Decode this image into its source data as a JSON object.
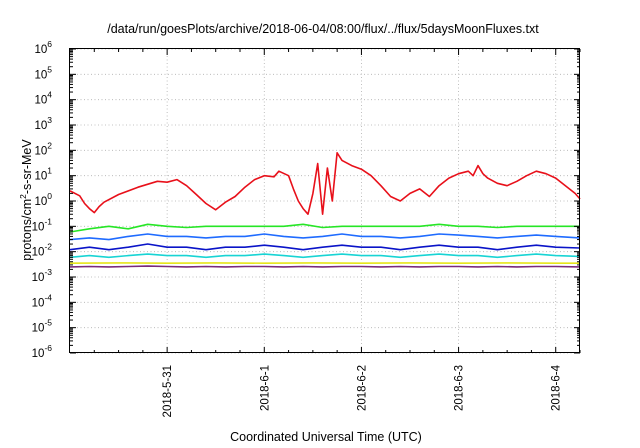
{
  "chart_data": {
    "type": "line",
    "title": "/data/run/goesPlots/archive/2018-06-04/08:00/flux/../flux/5daysMoonFluxes.txt",
    "xlabel": "Coordinated Universal Time (UTC)",
    "ylabel": "protons/cm²-s-sr-MeV",
    "ylabel_parts": {
      "pre": "protons/cm",
      "sup": "2",
      "post": "-s-sr-MeV"
    },
    "yscale": "log",
    "ylim": [
      1e-06,
      1000000.0
    ],
    "xlim": [
      0.0,
      5.25
    ],
    "x_origin_note": "x in days from 2018-05-30 00:00 UTC",
    "x_ticks": [
      {
        "x": 1.0,
        "label": "2018-5-31"
      },
      {
        "x": 2.0,
        "label": "2018-6-1"
      },
      {
        "x": 3.0,
        "label": "2018-6-2"
      },
      {
        "x": 4.0,
        "label": "2018-6-3"
      },
      {
        "x": 5.0,
        "label": "2018-6-4"
      }
    ],
    "y_ticks": [
      {
        "exp": -6,
        "label": "10",
        "sup": "-6"
      },
      {
        "exp": -5,
        "label": "10",
        "sup": "-5"
      },
      {
        "exp": -4,
        "label": "10",
        "sup": "-4"
      },
      {
        "exp": -3,
        "label": "10",
        "sup": "-3"
      },
      {
        "exp": -2,
        "label": "10",
        "sup": "-2"
      },
      {
        "exp": -1,
        "label": "10",
        "sup": "-1"
      },
      {
        "exp": 0,
        "label": "10",
        "sup": "0"
      },
      {
        "exp": 1,
        "label": "10",
        "sup": "1"
      },
      {
        "exp": 2,
        "label": "10",
        "sup": "2"
      },
      {
        "exp": 3,
        "label": "10",
        "sup": "3"
      },
      {
        "exp": 4,
        "label": "10",
        "sup": "4"
      },
      {
        "exp": 5,
        "label": "10",
        "sup": "5"
      },
      {
        "exp": 6,
        "label": "10",
        "sup": "6"
      }
    ],
    "grid": true,
    "legend": "none",
    "series": [
      {
        "color": "#e8101a",
        "points": [
          [
            0.0,
            2.5
          ],
          [
            0.1,
            1.6
          ],
          [
            0.15,
            0.8
          ],
          [
            0.2,
            0.5
          ],
          [
            0.25,
            0.35
          ],
          [
            0.3,
            0.6
          ],
          [
            0.35,
            0.9
          ],
          [
            0.5,
            1.8
          ],
          [
            0.7,
            3.5
          ],
          [
            0.9,
            6.0
          ],
          [
            1.0,
            5.5
          ],
          [
            1.1,
            7.0
          ],
          [
            1.2,
            4.0
          ],
          [
            1.3,
            1.8
          ],
          [
            1.4,
            0.8
          ],
          [
            1.5,
            0.45
          ],
          [
            1.6,
            0.9
          ],
          [
            1.7,
            1.5
          ],
          [
            1.8,
            3.5
          ],
          [
            1.9,
            7.0
          ],
          [
            2.0,
            10.0
          ],
          [
            2.1,
            9.0
          ],
          [
            2.15,
            15.0
          ],
          [
            2.25,
            10.0
          ],
          [
            2.3,
            3.0
          ],
          [
            2.35,
            1.0
          ],
          [
            2.4,
            0.5
          ],
          [
            2.45,
            0.3
          ],
          [
            2.5,
            2.0
          ],
          [
            2.55,
            30.0
          ],
          [
            2.6,
            0.3
          ],
          [
            2.65,
            20.0
          ],
          [
            2.7,
            1.0
          ],
          [
            2.75,
            80.0
          ],
          [
            2.8,
            40.0
          ],
          [
            2.9,
            25.0
          ],
          [
            3.0,
            18.0
          ],
          [
            3.1,
            10.0
          ],
          [
            3.2,
            4.0
          ],
          [
            3.3,
            1.5
          ],
          [
            3.4,
            1.0
          ],
          [
            3.5,
            2.0
          ],
          [
            3.6,
            3.0
          ],
          [
            3.7,
            1.5
          ],
          [
            3.8,
            4.0
          ],
          [
            3.9,
            8.0
          ],
          [
            4.0,
            12.0
          ],
          [
            4.1,
            15.0
          ],
          [
            4.15,
            10.0
          ],
          [
            4.2,
            25.0
          ],
          [
            4.25,
            12.0
          ],
          [
            4.3,
            8.0
          ],
          [
            4.4,
            5.0
          ],
          [
            4.5,
            4.0
          ],
          [
            4.6,
            6.0
          ],
          [
            4.7,
            10.0
          ],
          [
            4.8,
            15.0
          ],
          [
            4.9,
            12.0
          ],
          [
            5.0,
            8.0
          ],
          [
            5.1,
            4.0
          ],
          [
            5.2,
            2.0
          ],
          [
            5.25,
            1.2
          ]
        ]
      },
      {
        "color": "#26e626",
        "points": [
          [
            0.0,
            0.06
          ],
          [
            0.2,
            0.08
          ],
          [
            0.4,
            0.1
          ],
          [
            0.6,
            0.08
          ],
          [
            0.8,
            0.12
          ],
          [
            1.0,
            0.1
          ],
          [
            1.2,
            0.09
          ],
          [
            1.4,
            0.1
          ],
          [
            1.6,
            0.1
          ],
          [
            1.8,
            0.1
          ],
          [
            2.0,
            0.1
          ],
          [
            2.2,
            0.1
          ],
          [
            2.4,
            0.12
          ],
          [
            2.6,
            0.09
          ],
          [
            2.8,
            0.1
          ],
          [
            3.0,
            0.1
          ],
          [
            3.2,
            0.1
          ],
          [
            3.4,
            0.1
          ],
          [
            3.6,
            0.1
          ],
          [
            3.8,
            0.12
          ],
          [
            4.0,
            0.1
          ],
          [
            4.2,
            0.1
          ],
          [
            4.4,
            0.09
          ],
          [
            4.6,
            0.1
          ],
          [
            4.8,
            0.1
          ],
          [
            5.0,
            0.1
          ],
          [
            5.25,
            0.1
          ]
        ]
      },
      {
        "color": "#1f6bff",
        "points": [
          [
            0.0,
            0.03
          ],
          [
            0.2,
            0.035
          ],
          [
            0.4,
            0.03
          ],
          [
            0.6,
            0.04
          ],
          [
            0.8,
            0.05
          ],
          [
            1.0,
            0.04
          ],
          [
            1.2,
            0.04
          ],
          [
            1.4,
            0.035
          ],
          [
            1.6,
            0.04
          ],
          [
            1.8,
            0.04
          ],
          [
            2.0,
            0.05
          ],
          [
            2.2,
            0.04
          ],
          [
            2.4,
            0.035
          ],
          [
            2.6,
            0.04
          ],
          [
            2.8,
            0.05
          ],
          [
            3.0,
            0.04
          ],
          [
            3.2,
            0.04
          ],
          [
            3.4,
            0.035
          ],
          [
            3.6,
            0.04
          ],
          [
            3.8,
            0.05
          ],
          [
            4.0,
            0.045
          ],
          [
            4.2,
            0.04
          ],
          [
            4.4,
            0.035
          ],
          [
            4.6,
            0.04
          ],
          [
            4.8,
            0.045
          ],
          [
            5.0,
            0.04
          ],
          [
            5.25,
            0.035
          ]
        ]
      },
      {
        "color": "#0a14c8",
        "points": [
          [
            0.0,
            0.012
          ],
          [
            0.2,
            0.015
          ],
          [
            0.4,
            0.012
          ],
          [
            0.6,
            0.015
          ],
          [
            0.8,
            0.02
          ],
          [
            1.0,
            0.015
          ],
          [
            1.2,
            0.015
          ],
          [
            1.4,
            0.012
          ],
          [
            1.6,
            0.015
          ],
          [
            1.8,
            0.015
          ],
          [
            2.0,
            0.018
          ],
          [
            2.2,
            0.015
          ],
          [
            2.4,
            0.012
          ],
          [
            2.6,
            0.015
          ],
          [
            2.8,
            0.018
          ],
          [
            3.0,
            0.015
          ],
          [
            3.2,
            0.015
          ],
          [
            3.4,
            0.012
          ],
          [
            3.6,
            0.015
          ],
          [
            3.8,
            0.018
          ],
          [
            4.0,
            0.015
          ],
          [
            4.2,
            0.015
          ],
          [
            4.4,
            0.012
          ],
          [
            4.6,
            0.015
          ],
          [
            4.8,
            0.018
          ],
          [
            5.0,
            0.015
          ],
          [
            5.25,
            0.014
          ]
        ]
      },
      {
        "color": "#18d4d4",
        "points": [
          [
            0.0,
            0.006
          ],
          [
            0.2,
            0.007
          ],
          [
            0.4,
            0.006
          ],
          [
            0.6,
            0.007
          ],
          [
            0.8,
            0.008
          ],
          [
            1.0,
            0.007
          ],
          [
            1.2,
            0.007
          ],
          [
            1.4,
            0.006
          ],
          [
            1.6,
            0.007
          ],
          [
            1.8,
            0.007
          ],
          [
            2.0,
            0.008
          ],
          [
            2.2,
            0.007
          ],
          [
            2.4,
            0.006
          ],
          [
            2.6,
            0.007
          ],
          [
            2.8,
            0.008
          ],
          [
            3.0,
            0.007
          ],
          [
            3.2,
            0.007
          ],
          [
            3.4,
            0.006
          ],
          [
            3.6,
            0.007
          ],
          [
            3.8,
            0.008
          ],
          [
            4.0,
            0.007
          ],
          [
            4.2,
            0.007
          ],
          [
            4.4,
            0.006
          ],
          [
            4.6,
            0.007
          ],
          [
            4.8,
            0.008
          ],
          [
            5.0,
            0.007
          ],
          [
            5.25,
            0.0065
          ]
        ]
      },
      {
        "color": "#e6e61a",
        "points": [
          [
            0.0,
            0.0035
          ],
          [
            0.5,
            0.0036
          ],
          [
            1.0,
            0.0035
          ],
          [
            1.5,
            0.0036
          ],
          [
            2.0,
            0.0035
          ],
          [
            2.5,
            0.0036
          ],
          [
            3.0,
            0.0035
          ],
          [
            3.5,
            0.0036
          ],
          [
            4.0,
            0.0035
          ],
          [
            4.5,
            0.0036
          ],
          [
            5.0,
            0.0035
          ],
          [
            5.25,
            0.0035
          ]
        ]
      },
      {
        "color": "#7a2a7a",
        "points": [
          [
            0.0,
            0.0025
          ],
          [
            0.2,
            0.0026
          ],
          [
            0.4,
            0.0025
          ],
          [
            0.6,
            0.0026
          ],
          [
            0.8,
            0.0027
          ],
          [
            1.0,
            0.0026
          ],
          [
            1.2,
            0.0025
          ],
          [
            1.4,
            0.0026
          ],
          [
            1.6,
            0.0025
          ],
          [
            1.8,
            0.0026
          ],
          [
            2.0,
            0.0026
          ],
          [
            2.2,
            0.0025
          ],
          [
            2.4,
            0.0026
          ],
          [
            2.6,
            0.0025
          ],
          [
            2.8,
            0.0026
          ],
          [
            3.0,
            0.0026
          ],
          [
            3.2,
            0.0025
          ],
          [
            3.4,
            0.0026
          ],
          [
            3.6,
            0.0025
          ],
          [
            3.8,
            0.0026
          ],
          [
            4.0,
            0.0026
          ],
          [
            4.2,
            0.0025
          ],
          [
            4.4,
            0.0026
          ],
          [
            4.6,
            0.0025
          ],
          [
            4.8,
            0.0026
          ],
          [
            5.0,
            0.0026
          ],
          [
            5.25,
            0.0025
          ]
        ]
      }
    ]
  }
}
